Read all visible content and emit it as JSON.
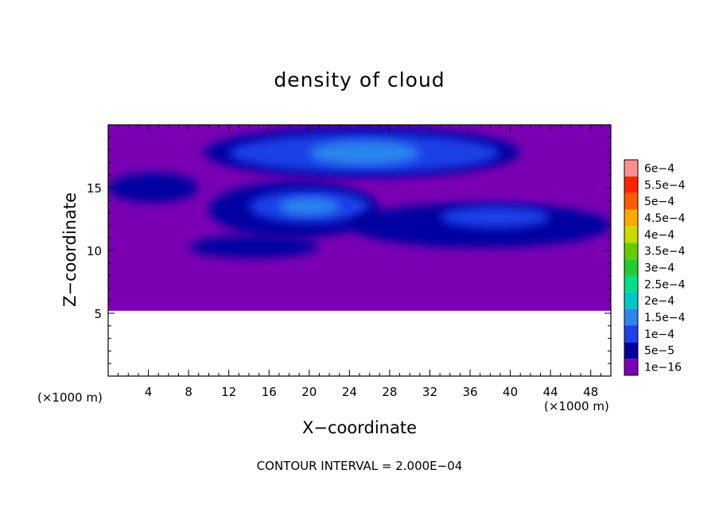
{
  "chart_data": {
    "type": "heatmap",
    "title": "density of cloud",
    "xlabel": "X−coordinate",
    "ylabel": "Z−coordinate",
    "x_unit": "(×1000 m)",
    "y_unit": "(×1000 m)",
    "x_range": [
      0,
      50
    ],
    "y_range": [
      0,
      20
    ],
    "x_ticks": [
      4,
      8,
      12,
      16,
      20,
      24,
      28,
      32,
      36,
      40,
      44,
      48
    ],
    "y_ticks": [
      5,
      10,
      15
    ],
    "note": "CONTOUR INTERVAL = 2.000E−04",
    "colorbar": {
      "levels": [
        "1e−16",
        "5e−5",
        "1e−4",
        "1.5e−4",
        "2e−4",
        "2.5e−4",
        "3e−4",
        "3.5e−4",
        "4e−4",
        "4.5e−4",
        "5e−4",
        "5.5e−4",
        "6e−4"
      ],
      "colors": [
        "#7b00b4",
        "#0000a0",
        "#1f40e8",
        "#2c86ee",
        "#00c8c8",
        "#00e08a",
        "#22cc33",
        "#66cc00",
        "#c8dc00",
        "#ffaa00",
        "#ff5a00",
        "#ff2200",
        "#ff9090"
      ]
    },
    "field": {
      "background_level": "1e−16",
      "empty_below_z": 5.2,
      "regions": [
        {
          "level": "5e−5",
          "x": [
            9.5,
            41
          ],
          "z": [
            15.8,
            19.8
          ]
        },
        {
          "level": "1e−4",
          "x": [
            12,
            39
          ],
          "z": [
            16.2,
            19.3
          ]
        },
        {
          "level": "1.5e−4",
          "x": [
            20,
            31
          ],
          "z": [
            16.8,
            18.7
          ]
        },
        {
          "level": "5e−5",
          "x": [
            0,
            9
          ],
          "z": [
            13.8,
            16.2
          ]
        },
        {
          "level": "5e−5",
          "x": [
            10,
            27
          ],
          "z": [
            11,
            15.5
          ]
        },
        {
          "level": "1e−4",
          "x": [
            14,
            26
          ],
          "z": [
            12.2,
            14.8
          ]
        },
        {
          "level": "1.5e−4",
          "x": [
            17,
            23
          ],
          "z": [
            12.8,
            14.2
          ]
        },
        {
          "level": "5e−5",
          "x": [
            24,
            50
          ],
          "z": [
            10.2,
            13.8
          ]
        },
        {
          "level": "1e−4",
          "x": [
            33,
            44
          ],
          "z": [
            11.8,
            13.5
          ]
        },
        {
          "level": "5e−5",
          "x": [
            8,
            21
          ],
          "z": [
            9.4,
            11.2
          ]
        }
      ]
    }
  }
}
